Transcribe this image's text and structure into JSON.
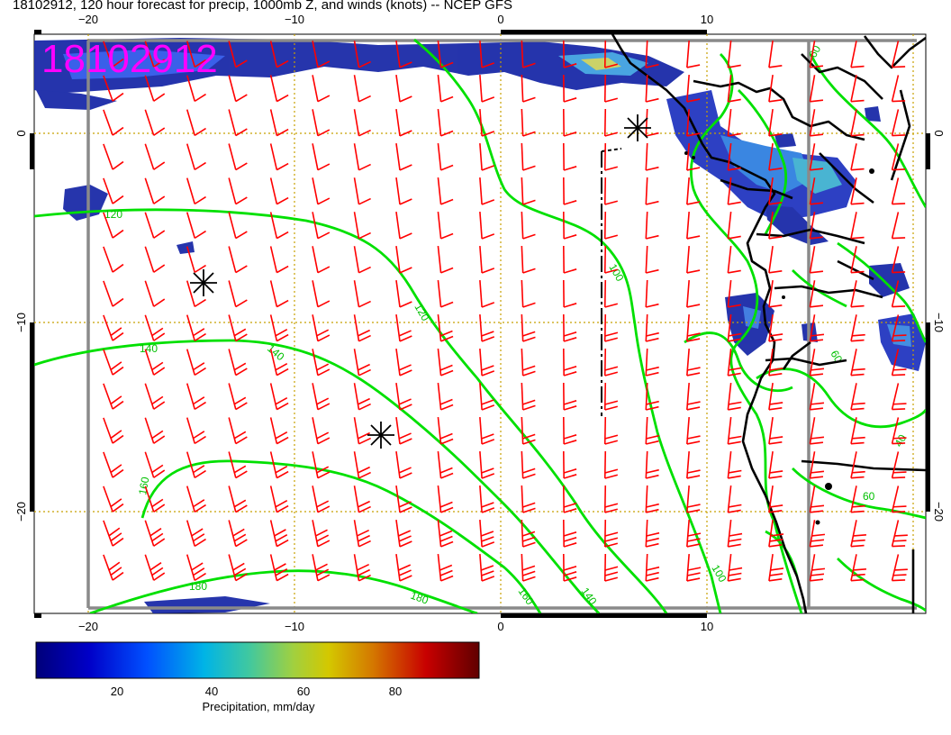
{
  "title": "18102912, 120 hour forecast for precip, 1000mb Z, and winds (knots) -- NCEP GFS",
  "date_stamp": "18102912",
  "lon_ticks": [
    {
      "value": -20,
      "label": "−20"
    },
    {
      "value": -10,
      "label": "−10"
    },
    {
      "value": 0,
      "label": "0"
    },
    {
      "value": 10,
      "label": "10"
    }
  ],
  "lat_ticks": [
    {
      "value": 0,
      "label": "0"
    },
    {
      "value": -10,
      "label": "−10"
    },
    {
      "value": -20,
      "label": "−20"
    }
  ],
  "contours": [
    {
      "level": "120",
      "label": "120"
    },
    {
      "level": "140",
      "label": "140"
    },
    {
      "level": "160",
      "label": "160"
    },
    {
      "level": "180",
      "label": "180"
    },
    {
      "level": "100",
      "label": "100"
    },
    {
      "level": "40",
      "label": "40"
    },
    {
      "level": "60",
      "label": "60"
    }
  ],
  "colorbar": {
    "ticks": [
      "20",
      "40",
      "60",
      "80"
    ],
    "label": "Precipitation, mm/day",
    "colors": [
      "#00007a",
      "#0000c8",
      "#0050ff",
      "#00b4e6",
      "#40c8a0",
      "#a0d040",
      "#d4c800",
      "#d47800",
      "#c80000",
      "#600000"
    ]
  },
  "colors": {
    "wind_barb": "#ff0000",
    "contour": "#00e000",
    "contour_label": "#00c000",
    "stamp": "#ff00ff",
    "coast": "#000000",
    "grid": "#c8a000"
  }
}
